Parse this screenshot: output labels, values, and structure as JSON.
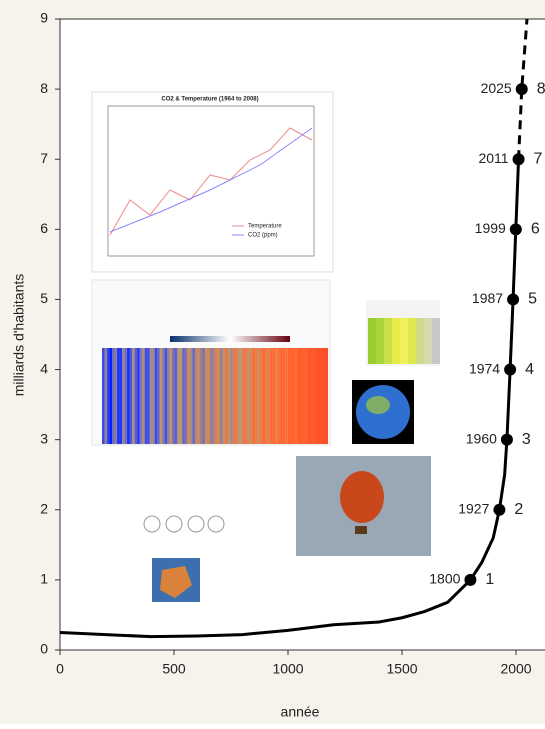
{
  "chart_data": {
    "type": "line",
    "x_label": "année",
    "y_label": "milliards d'habitants",
    "xlim": [
      0,
      2127
    ],
    "ylim": [
      0,
      9
    ],
    "xticks": [
      0,
      500,
      1000,
      1500,
      2000
    ],
    "yticks": [
      0,
      1,
      2,
      3,
      4,
      5,
      6,
      7,
      8,
      9
    ],
    "series": [
      {
        "color": "#000000",
        "style": "solid",
        "x": [
          0,
          200,
          400,
          600,
          800,
          1000,
          1200,
          1400,
          1500,
          1600,
          1700,
          1800,
          1850,
          1900,
          1927,
          1950,
          1960,
          1974,
          1987,
          1999,
          2011
        ],
        "values": [
          0.25,
          0.22,
          0.19,
          0.2,
          0.22,
          0.28,
          0.36,
          0.4,
          0.46,
          0.55,
          0.68,
          1,
          1.25,
          1.6,
          2,
          2.5,
          3,
          4,
          5,
          6,
          7
        ]
      },
      {
        "color": "#000000",
        "style": "dashed",
        "x": [
          2011,
          2025,
          2048
        ],
        "values": [
          7,
          8,
          9
        ]
      }
    ],
    "milestones": {
      "color": "#000000",
      "x": [
        1800,
        1927,
        1960,
        1974,
        1987,
        1999,
        2011,
        2025
      ],
      "values": [
        1,
        2,
        3,
        4,
        5,
        6,
        7,
        8
      ]
    }
  },
  "inset": {
    "title": "CO2 & Temperature (1964 to 2008)",
    "legend": [
      "Temperature",
      "CO2 (ppm)"
    ]
  }
}
